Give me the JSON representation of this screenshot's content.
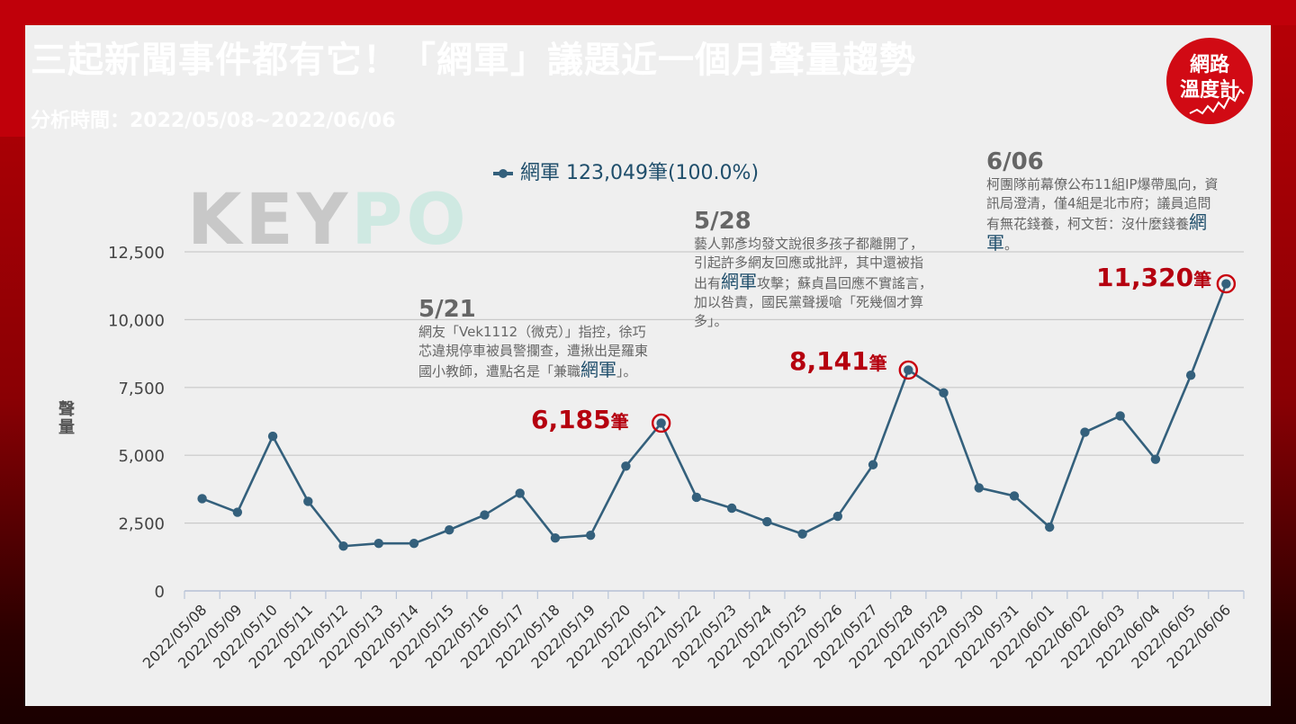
{
  "header": {
    "title": "三起新聞事件都有它！「網軍」議題近一個月聲量趨勢",
    "period": "分析時間：2022/05/08~2022/06/06"
  },
  "logo": {
    "line1": "網路",
    "line2": "溫度計"
  },
  "watermark": {
    "left": "KEY",
    "right": "PO"
  },
  "colors": {
    "line": "#34607c",
    "accent": "#b5000f",
    "banner": "#c0000a"
  },
  "annotations": [
    {
      "date": "5/21",
      "before": "網友「Vek1112（微克）」指控，徐巧芯違規停車被員警攔查，遭揪出是羅東國小教師，遭點名是「兼職",
      "highlight": "網軍",
      "after": "」。",
      "value": "6,185",
      "unit": "筆"
    },
    {
      "date": "5/28",
      "before": "藝人郭彥均發文說很多孩子都離開了，引起許多網友回應或批評，其中還被指出有",
      "highlight": "網軍",
      "after": "攻擊；蘇貞昌回應不實謠言，加以咎責，國民黨聲援嗆「死幾個才算多」。",
      "value": "8,141",
      "unit": "筆"
    },
    {
      "date": "6/06",
      "before": "柯團隊前幕僚公布11組IP爆帶風向，資訊局澄清，僅4組是北市府；議員追問有無花錢養，柯文哲：沒什麼錢養",
      "highlight": "網軍",
      "after": "。",
      "value": "11,320",
      "unit": "筆"
    }
  ],
  "chart_data": {
    "type": "line",
    "title": "三起新聞事件都有它！「網軍」議題近一個月聲量趨勢",
    "ylabel": "聲量",
    "xlabel": "",
    "ylim": [
      0,
      12500
    ],
    "yticks": [
      0,
      2500,
      5000,
      7500,
      10000,
      12500
    ],
    "ytick_labels": [
      "0",
      "2,500",
      "5,000",
      "7,500",
      "10,000",
      "12,500"
    ],
    "grid": true,
    "legend": "網軍 123,049筆(100.0%)",
    "legend_position": "top",
    "categories": [
      "2022/05/08",
      "2022/05/09",
      "2022/05/10",
      "2022/05/11",
      "2022/05/12",
      "2022/05/13",
      "2022/05/14",
      "2022/05/15",
      "2022/05/16",
      "2022/05/17",
      "2022/05/18",
      "2022/05/19",
      "2022/05/20",
      "2022/05/21",
      "2022/05/22",
      "2022/05/23",
      "2022/05/24",
      "2022/05/25",
      "2022/05/26",
      "2022/05/27",
      "2022/05/28",
      "2022/05/29",
      "2022/05/30",
      "2022/05/31",
      "2022/06/01",
      "2022/06/02",
      "2022/06/03",
      "2022/06/04",
      "2022/06/05",
      "2022/06/06"
    ],
    "series": [
      {
        "name": "網軍",
        "values": [
          3400,
          2900,
          5700,
          3300,
          1650,
          1750,
          1750,
          2250,
          2800,
          3600,
          1950,
          2050,
          4600,
          6185,
          3450,
          3050,
          2550,
          2100,
          2750,
          4650,
          8141,
          7300,
          3800,
          3500,
          2350,
          5850,
          6450,
          4850,
          7950,
          11320
        ]
      }
    ],
    "highlighted_points": [
      "2022/05/21",
      "2022/05/28",
      "2022/06/06"
    ]
  }
}
